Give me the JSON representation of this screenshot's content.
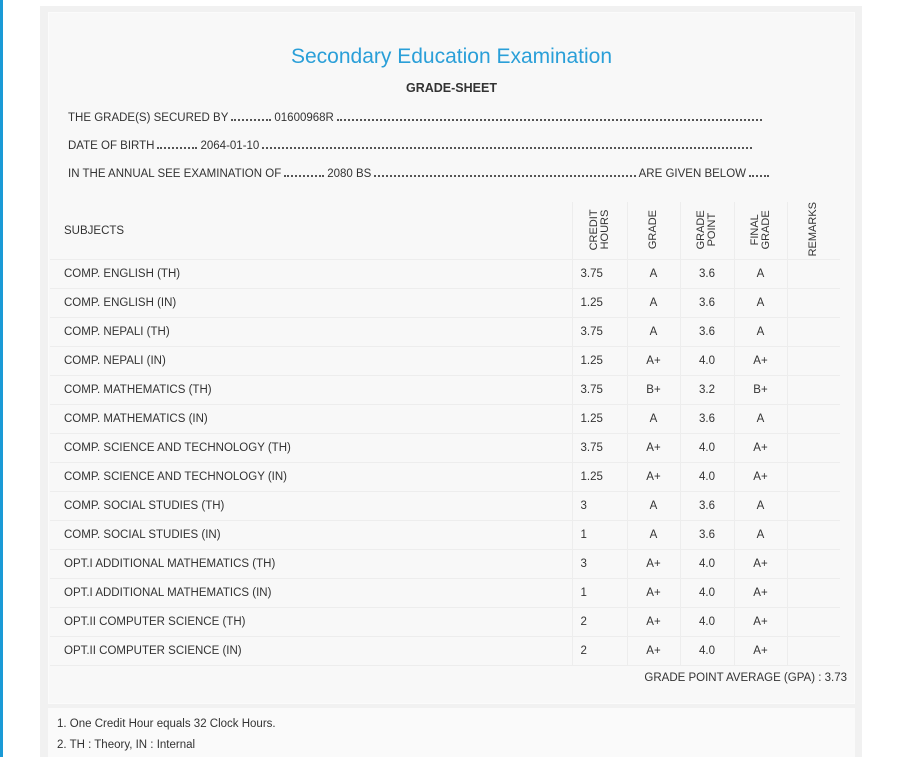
{
  "header": {
    "title": "Secondary Education Examination",
    "subtitle": "GRADE-SHEET"
  },
  "info": [
    {
      "label": "THE GRADE(S) SECURED BY",
      "value": "01600968R"
    },
    {
      "label": "DATE OF BIRTH",
      "value": "2064-01-10"
    },
    {
      "label": "IN THE ANNUAL SEE EXAMINATION OF",
      "value": "2080 BS",
      "suffix": "ARE GIVEN BELOW"
    }
  ],
  "table": {
    "headers": [
      "SUBJECTS",
      "CREDIT HOURS",
      "GRADE",
      "GRADE POINT",
      "FINAL GRADE",
      "REMARKS"
    ],
    "rows": [
      [
        "COMP. ENGLISH (TH)",
        "3.75",
        "A",
        "3.6",
        "A"
      ],
      [
        "COMP. ENGLISH (IN)",
        "1.25",
        "A",
        "3.6",
        "A"
      ],
      [
        "COMP. NEPALI (TH)",
        "3.75",
        "A",
        "3.6",
        "A"
      ],
      [
        "COMP. NEPALI (IN)",
        "1.25",
        "A+",
        "4.0",
        "A+"
      ],
      [
        "COMP. MATHEMATICS (TH)",
        "3.75",
        "B+",
        "3.2",
        "B+"
      ],
      [
        "COMP. MATHEMATICS (IN)",
        "1.25",
        "A",
        "3.6",
        "A"
      ],
      [
        "COMP. SCIENCE AND TECHNOLOGY (TH)",
        "3.75",
        "A+",
        "4.0",
        "A+"
      ],
      [
        "COMP. SCIENCE AND TECHNOLOGY (IN)",
        "1.25",
        "A+",
        "4.0",
        "A+"
      ],
      [
        "COMP. SOCIAL STUDIES (TH)",
        "3",
        "A",
        "3.6",
        "A"
      ],
      [
        "COMP. SOCIAL STUDIES (IN)",
        "1",
        "A",
        "3.6",
        "A"
      ],
      [
        "OPT.I ADDITIONAL MATHEMATICS (TH)",
        "3",
        "A+",
        "4.0",
        "A+"
      ],
      [
        "OPT.I ADDITIONAL MATHEMATICS (IN)",
        "1",
        "A+",
        "4.0",
        "A+"
      ],
      [
        "OPT.II COMPUTER SCIENCE (TH)",
        "2",
        "A+",
        "4.0",
        "A+"
      ],
      [
        "OPT.II COMPUTER SCIENCE (IN)",
        "2",
        "A+",
        "4.0",
        "A+"
      ]
    ]
  },
  "gpa": "GRADE POINT AVERAGE (GPA) : 3.73",
  "notes": [
    "1. One Credit Hour equals 32 Clock Hours.",
    "2. TH : Theory, IN : Internal"
  ]
}
